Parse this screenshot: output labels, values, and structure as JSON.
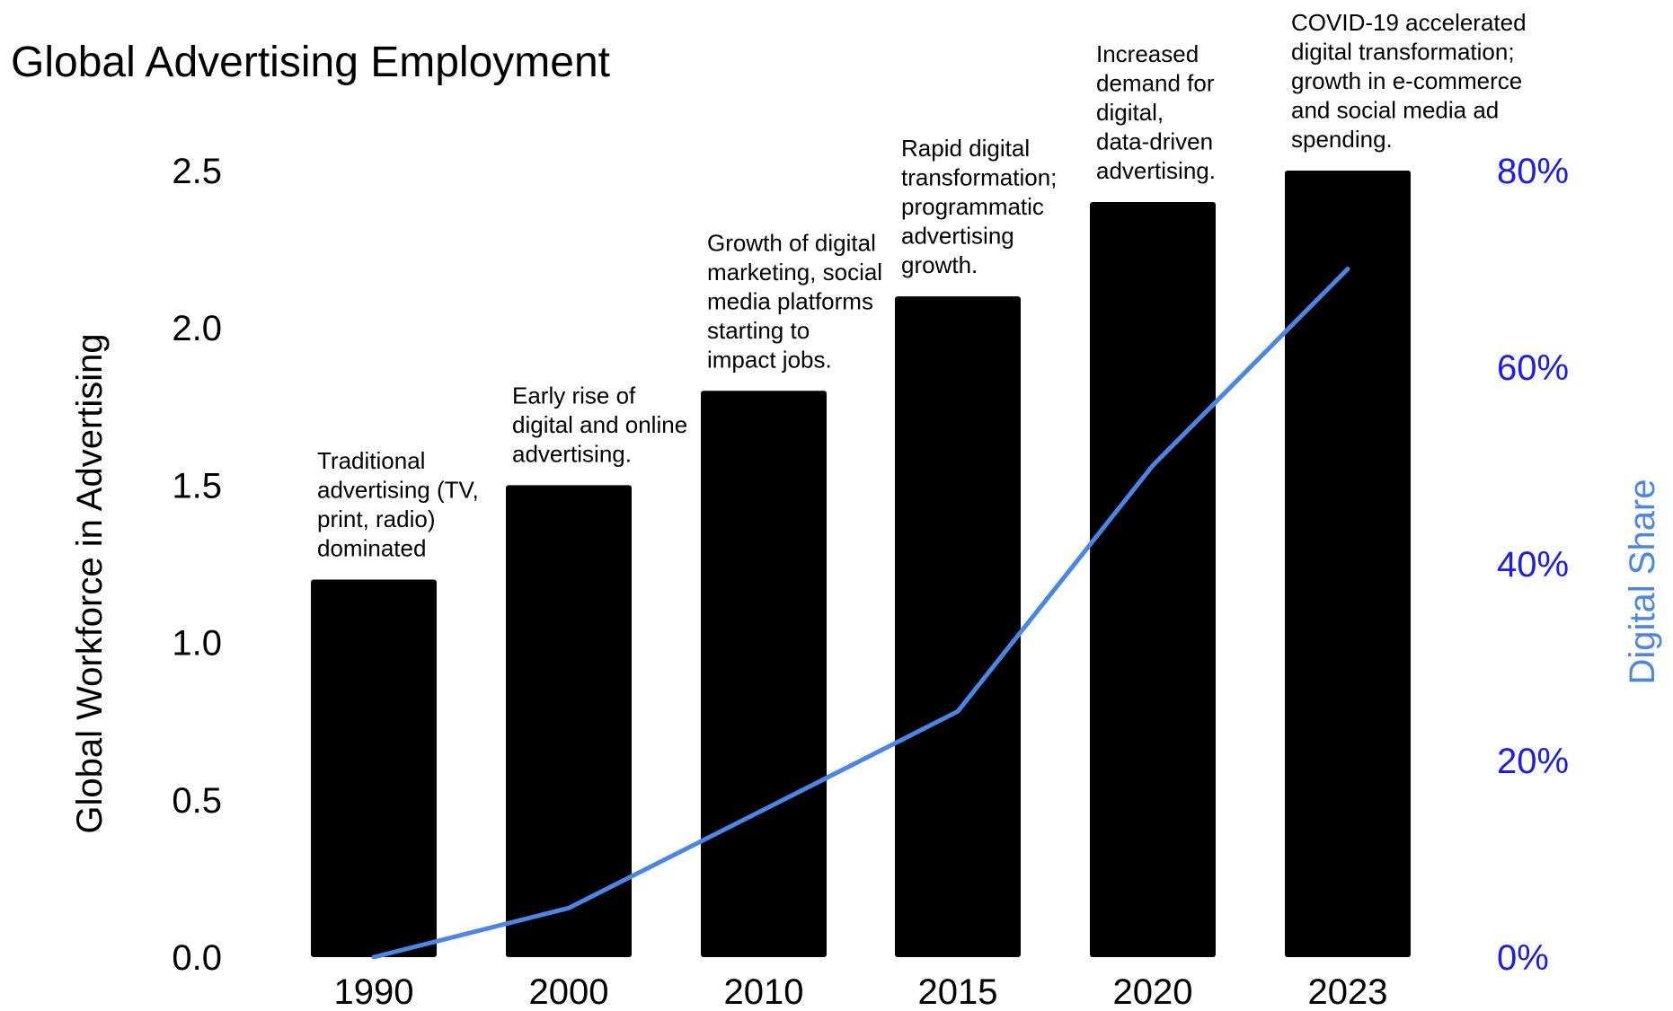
{
  "chart_data": {
    "type": "bar",
    "title": "Global Advertising Employment",
    "xlabel": "",
    "ylabel": "Global Workforce in Advertising",
    "y2label": "Digital Share",
    "categories": [
      "1990",
      "2000",
      "2010",
      "2015",
      "2020",
      "2023"
    ],
    "series": [
      {
        "values": [
          1.2,
          1.5,
          1.8,
          2.1,
          2.4,
          2.5
        ],
        "kind": "bar",
        "axis": "left"
      },
      {
        "values": [
          0.0,
          0.05,
          0.15,
          0.25,
          0.5,
          0.7
        ],
        "kind": "line",
        "axis": "right"
      }
    ],
    "yticks": [
      "0.0",
      "0.5",
      "1.0",
      "1.5",
      "2.0",
      "2.5"
    ],
    "y2ticks": [
      "0%",
      "20%",
      "40%",
      "60%",
      "80%"
    ],
    "ylim": [
      0,
      2.5
    ],
    "y2lim": [
      0,
      0.8
    ],
    "grid": false,
    "annotations": [
      [
        "Traditional",
        "advertising (TV,",
        "print, radio)",
        "dominated"
      ],
      [
        "Early rise of",
        "digital and online",
        "advertising."
      ],
      [
        "Growth of digital",
        "marketing, social",
        "media platforms",
        "starting to",
        "impact jobs."
      ],
      [
        "Rapid digital",
        "transformation;",
        "programmatic",
        "advertising",
        "growth."
      ],
      [
        "Increased",
        "demand for",
        "digital,",
        "data-driven",
        "advertising."
      ],
      [
        "COVID-19 accelerated",
        "digital transformation;",
        "growth in e-commerce",
        "and social media ad",
        "spending."
      ]
    ],
    "colors": {
      "bar": "#000000",
      "line": "#4a86e8",
      "right_tick": "#1a1aff",
      "right_label": "#4a86e8",
      "text": "#000000"
    }
  }
}
